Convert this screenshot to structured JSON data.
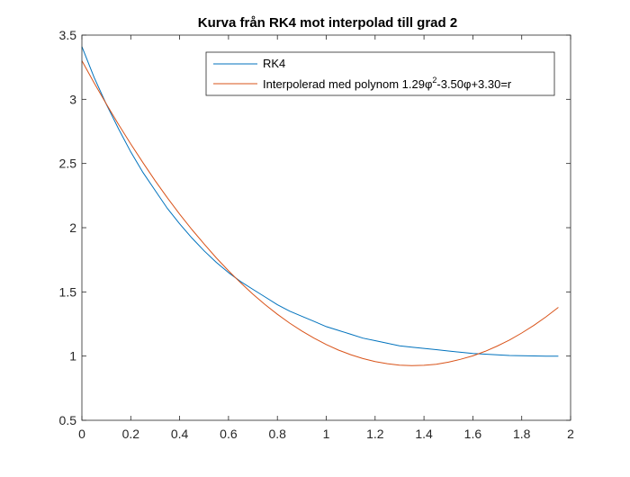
{
  "chart_data": {
    "type": "line",
    "title": "Kurva från RK4 mot interpolad till grad 2",
    "xlabel": "",
    "ylabel": "",
    "xlim": [
      0,
      2
    ],
    "ylim": [
      0.5,
      3.5
    ],
    "x_ticks": [
      "0",
      "0.2",
      "0.4",
      "0.6",
      "0.8",
      "1",
      "1.2",
      "1.4",
      "1.6",
      "1.8",
      "2"
    ],
    "y_ticks": [
      "0.5",
      "1",
      "1.5",
      "2",
      "2.5",
      "3",
      "3.5"
    ],
    "grid": false,
    "legend_position": "top-right",
    "legend": {
      "rk4": "RK4",
      "interp_prefix": "Interpolerad med polynom 1.29φ",
      "interp_sup": "2",
      "interp_suffix": "-3.50φ+3.30=r"
    },
    "series": [
      {
        "name": "RK4",
        "color": "#0072BD",
        "x": [
          0,
          0.05,
          0.1,
          0.15,
          0.2,
          0.25,
          0.3,
          0.35,
          0.4,
          0.45,
          0.5,
          0.55,
          0.6,
          0.65,
          0.7,
          0.75,
          0.8,
          0.85,
          0.9,
          0.95,
          1.0,
          1.05,
          1.1,
          1.15,
          1.2,
          1.25,
          1.3,
          1.35,
          1.4,
          1.45,
          1.5,
          1.55,
          1.6,
          1.65,
          1.7,
          1.75,
          1.8,
          1.85,
          1.9,
          1.95
        ],
        "y": [
          3.41,
          3.17,
          2.96,
          2.77,
          2.59,
          2.43,
          2.29,
          2.15,
          2.03,
          1.92,
          1.82,
          1.73,
          1.65,
          1.58,
          1.52,
          1.46,
          1.4,
          1.35,
          1.31,
          1.27,
          1.23,
          1.2,
          1.17,
          1.14,
          1.12,
          1.1,
          1.08,
          1.07,
          1.06,
          1.05,
          1.04,
          1.03,
          1.02,
          1.015,
          1.01,
          1.005,
          1.003,
          1.001,
          1.0,
          1.0
        ]
      },
      {
        "name": "Interpolerad med polynom 1.29φ²-3.50φ+3.30=r",
        "color": "#D95319",
        "x": [
          0,
          0.05,
          0.1,
          0.15,
          0.2,
          0.25,
          0.3,
          0.35,
          0.4,
          0.45,
          0.5,
          0.55,
          0.6,
          0.65,
          0.7,
          0.75,
          0.8,
          0.85,
          0.9,
          0.95,
          1.0,
          1.05,
          1.1,
          1.15,
          1.2,
          1.25,
          1.3,
          1.35,
          1.4,
          1.45,
          1.5,
          1.55,
          1.6,
          1.65,
          1.7,
          1.75,
          1.8,
          1.85,
          1.9,
          1.95
        ],
        "y": [
          3.3,
          3.128,
          2.963,
          2.804,
          2.652,
          2.506,
          2.366,
          2.233,
          2.106,
          1.986,
          1.873,
          1.765,
          1.664,
          1.57,
          1.482,
          1.401,
          1.326,
          1.257,
          1.195,
          1.14,
          1.09,
          1.047,
          1.011,
          0.981,
          0.958,
          0.941,
          0.93,
          0.926,
          0.928,
          0.937,
          0.953,
          0.975,
          1.002,
          1.037,
          1.078,
          1.125,
          1.18,
          1.24,
          1.307,
          1.38
        ]
      }
    ]
  }
}
